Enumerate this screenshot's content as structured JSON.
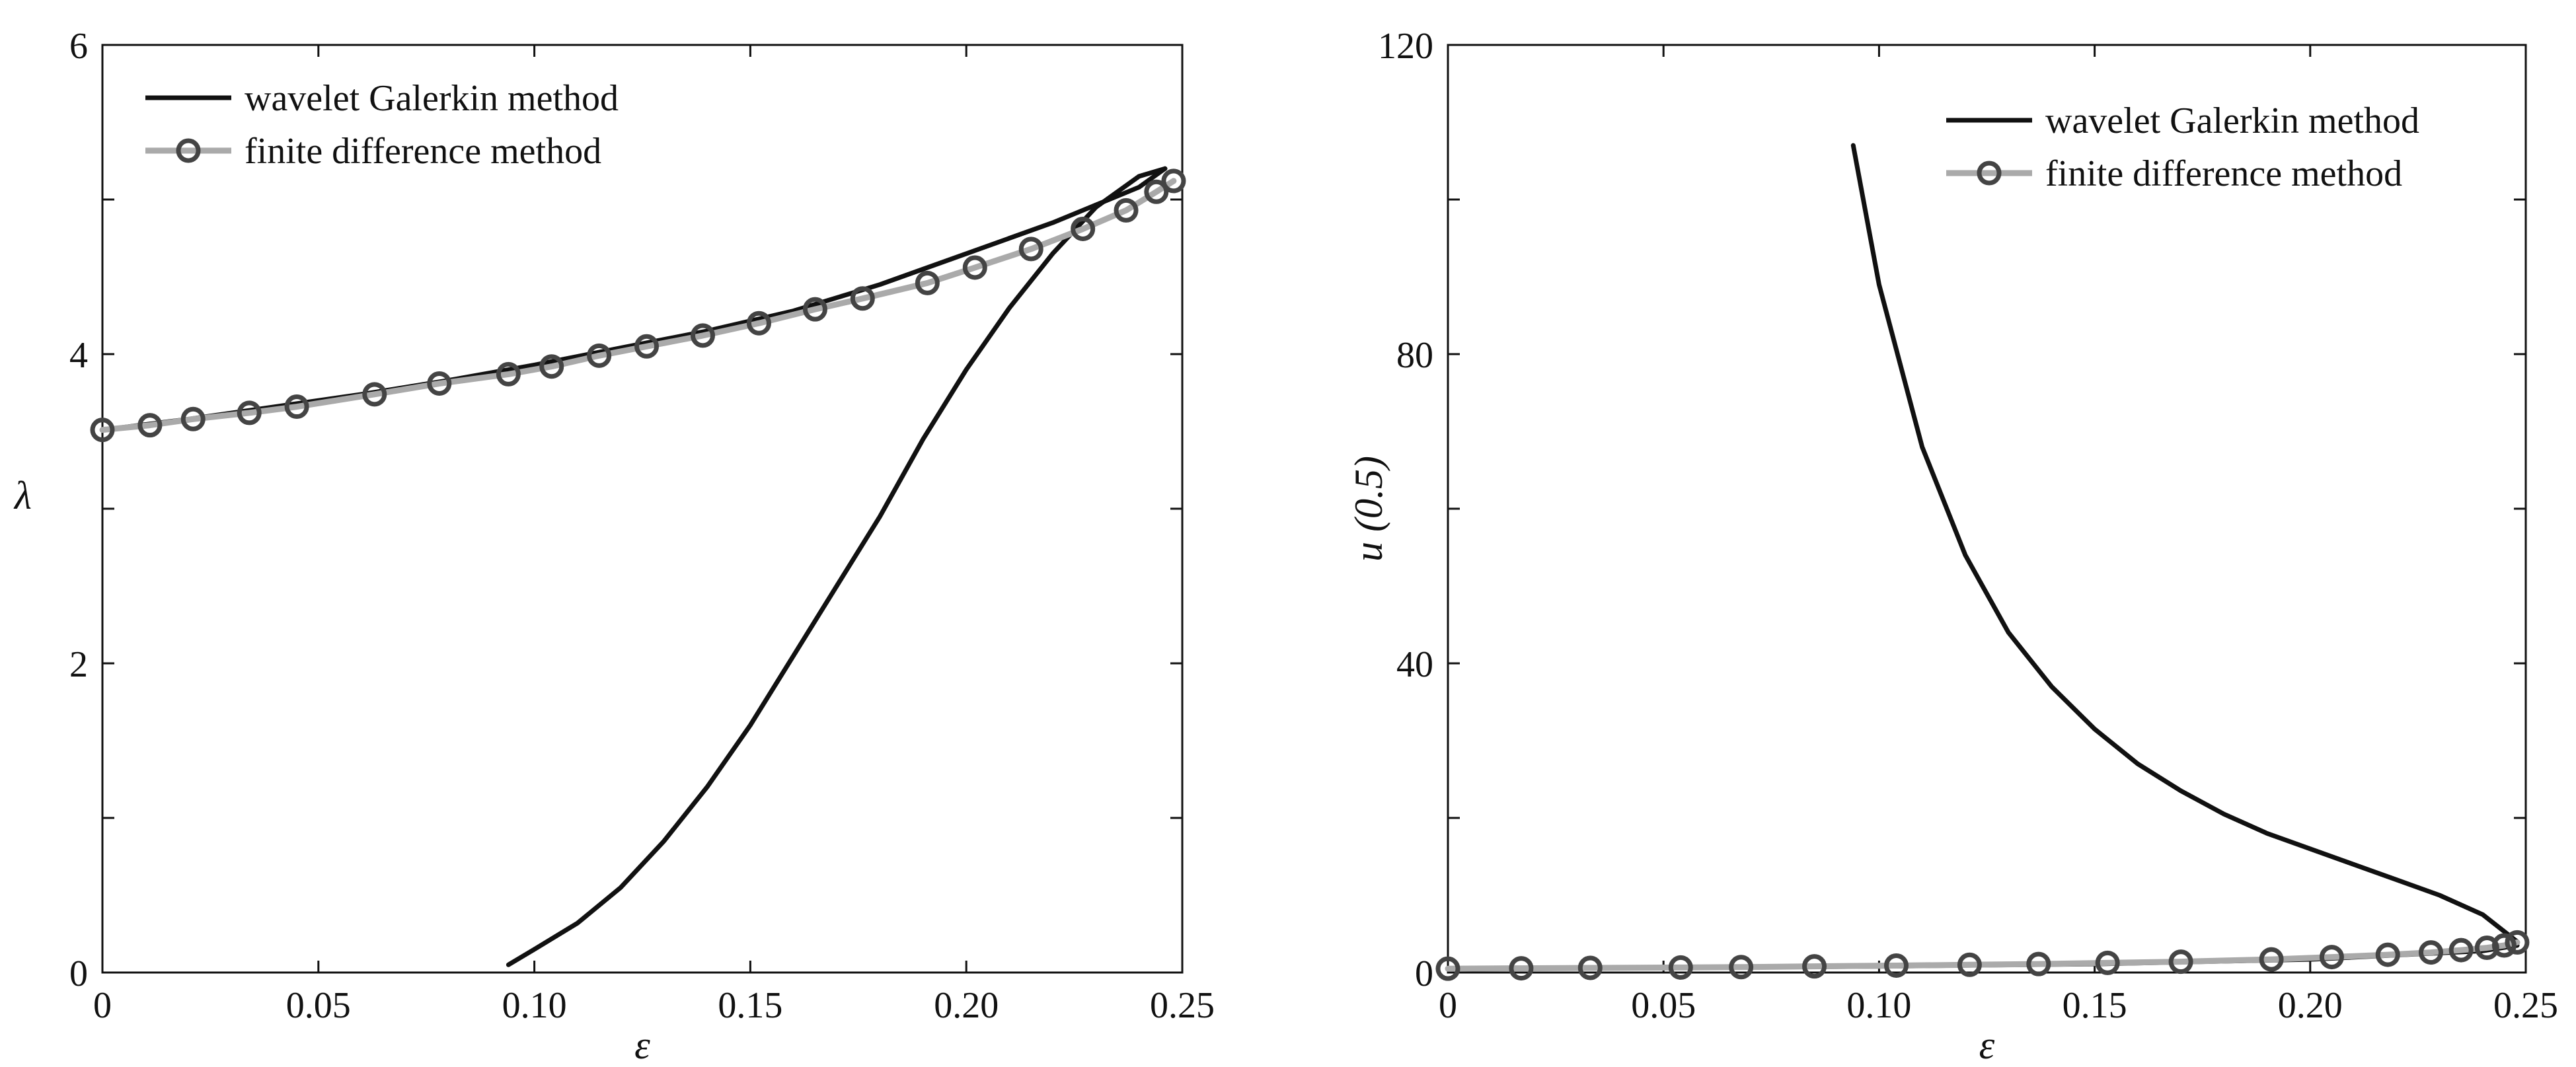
{
  "chart_data": [
    {
      "type": "line",
      "xlabel": "ε",
      "ylabel": "λ",
      "xlim": [
        0,
        0.25
      ],
      "ylim": [
        0,
        6
      ],
      "x_ticks": [
        "0",
        "0.05",
        "0.10",
        "0.15",
        "0.20",
        "0.25"
      ],
      "x_tick_values": [
        0,
        0.05,
        0.1,
        0.15,
        0.2,
        0.25
      ],
      "y_ticks": [
        "0",
        "2",
        "4",
        "6"
      ],
      "y_tick_values": [
        0,
        2,
        4,
        6
      ],
      "y_minor_values": [
        1,
        3,
        5
      ],
      "legend_position": "top-left",
      "legend": [
        "wavelet Galerkin method",
        "finite difference method"
      ],
      "series": [
        {
          "name": "wavelet Galerkin method",
          "style": "solid",
          "color": "#111111",
          "x": [
            0.0,
            0.02,
            0.04,
            0.06,
            0.08,
            0.1,
            0.12,
            0.14,
            0.16,
            0.18,
            0.2,
            0.22,
            0.24,
            0.246
          ],
          "y": [
            3.51,
            3.58,
            3.66,
            3.74,
            3.83,
            3.93,
            4.04,
            4.15,
            4.28,
            4.45,
            4.65,
            4.85,
            5.08,
            5.2
          ]
        },
        {
          "name": "",
          "style": "solid",
          "color": "#111111",
          "x": [
            0.094,
            0.1,
            0.11,
            0.12,
            0.13,
            0.14,
            0.15,
            0.16,
            0.17,
            0.18,
            0.19,
            0.2,
            0.21,
            0.22,
            0.23,
            0.24,
            0.246
          ],
          "y": [
            0.05,
            0.15,
            0.32,
            0.55,
            0.85,
            1.2,
            1.6,
            2.05,
            2.5,
            2.95,
            3.45,
            3.9,
            4.3,
            4.65,
            4.95,
            5.15,
            5.2
          ]
        },
        {
          "name": "finite difference method",
          "style": "line-markers",
          "color": "#aaaaaa",
          "marker": "open-circle",
          "x": [
            0.0,
            0.011,
            0.021,
            0.034,
            0.045,
            0.063,
            0.078,
            0.094,
            0.104,
            0.115,
            0.126,
            0.139,
            0.152,
            0.165,
            0.176,
            0.191,
            0.202,
            0.215,
            0.227,
            0.237,
            0.244,
            0.248
          ],
          "y": [
            3.51,
            3.54,
            3.58,
            3.62,
            3.66,
            3.74,
            3.81,
            3.87,
            3.92,
            3.99,
            4.05,
            4.12,
            4.2,
            4.29,
            4.36,
            4.46,
            4.56,
            4.68,
            4.81,
            4.93,
            5.05,
            5.12
          ]
        }
      ]
    },
    {
      "type": "line",
      "xlabel": "ε",
      "ylabel": "u (0.5)",
      "xlim": [
        0,
        0.25
      ],
      "ylim": [
        0,
        120
      ],
      "x_ticks": [
        "0",
        "0.05",
        "0.10",
        "0.15",
        "0.20",
        "0.25"
      ],
      "x_tick_values": [
        0,
        0.05,
        0.1,
        0.15,
        0.2,
        0.25
      ],
      "y_ticks": [
        "0",
        "40",
        "80",
        "120"
      ],
      "y_tick_values": [
        0,
        40,
        80,
        120
      ],
      "y_minor_values": [
        20,
        60,
        100
      ],
      "legend_position": "top-right",
      "legend": [
        "wavelet Galerkin method",
        "finite difference method"
      ],
      "series": [
        {
          "name": "wavelet Galerkin method",
          "style": "solid",
          "color": "#111111",
          "x": [
            0.0,
            0.05,
            0.1,
            0.15,
            0.2,
            0.24,
            0.248
          ],
          "y": [
            0.5,
            0.6,
            0.8,
            1.1,
            1.7,
            2.8,
            3.5
          ]
        },
        {
          "name": "",
          "style": "solid",
          "color": "#111111",
          "x": [
            0.094,
            0.1,
            0.11,
            0.12,
            0.13,
            0.14,
            0.15,
            0.16,
            0.17,
            0.18,
            0.19,
            0.2,
            0.21,
            0.22,
            0.23,
            0.24,
            0.248
          ],
          "y": [
            107,
            89,
            68,
            54,
            44,
            37,
            31.5,
            27,
            23.5,
            20.5,
            18,
            16,
            14,
            12,
            10,
            7.5,
            4
          ]
        },
        {
          "name": "finite difference method",
          "style": "line-markers",
          "color": "#aaaaaa",
          "marker": "open-circle",
          "x": [
            0.0,
            0.017,
            0.033,
            0.054,
            0.068,
            0.085,
            0.104,
            0.121,
            0.137,
            0.153,
            0.17,
            0.191,
            0.205,
            0.218,
            0.228,
            0.235,
            0.241,
            0.245,
            0.248
          ],
          "y": [
            0.5,
            0.55,
            0.6,
            0.65,
            0.7,
            0.8,
            0.9,
            1.0,
            1.1,
            1.25,
            1.4,
            1.7,
            2.0,
            2.3,
            2.6,
            2.9,
            3.2,
            3.5,
            3.9
          ]
        }
      ]
    }
  ]
}
